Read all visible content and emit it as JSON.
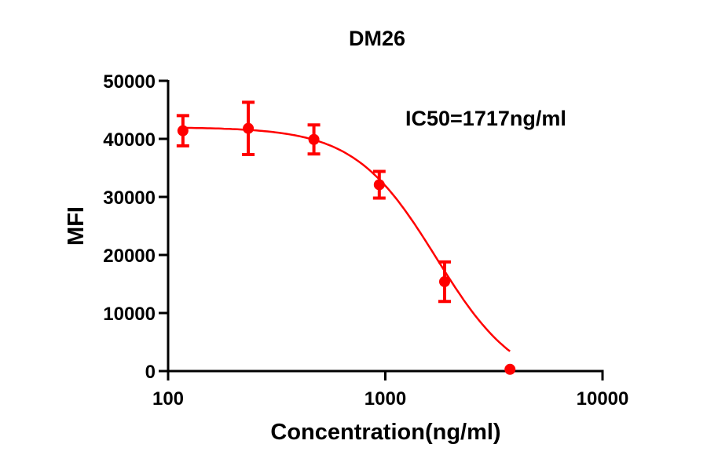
{
  "chart_data": {
    "type": "scatter",
    "title": "DM26",
    "xlabel": "Concentration(ng/ml)",
    "ylabel": "MFI",
    "annotation": "IC50=1717ng/ml",
    "x_scale": "log",
    "xlim": [
      100,
      10000
    ],
    "ylim": [
      0,
      50000
    ],
    "x_ticks": [
      100,
      1000,
      10000
    ],
    "x_tick_labels": [
      "100",
      "1000",
      "10000"
    ],
    "y_ticks": [
      0,
      10000,
      20000,
      30000,
      40000,
      50000
    ],
    "y_tick_labels": [
      "0",
      "10000",
      "20000",
      "30000",
      "40000",
      "50000"
    ],
    "grid": false,
    "legend": null,
    "color": "#ff0000",
    "series": [
      {
        "name": "DM26",
        "x": [
          117,
          234,
          469,
          938,
          1875,
          3750
        ],
        "y": [
          41400,
          41800,
          39900,
          32100,
          15400,
          300
        ],
        "error": [
          2600,
          4500,
          2500,
          2300,
          3400,
          0
        ]
      }
    ],
    "fit": {
      "type": "four-parameter logistic",
      "top": 42000,
      "bottom": -3000,
      "ic50": 1717,
      "hill_slope": 2.3
    }
  }
}
